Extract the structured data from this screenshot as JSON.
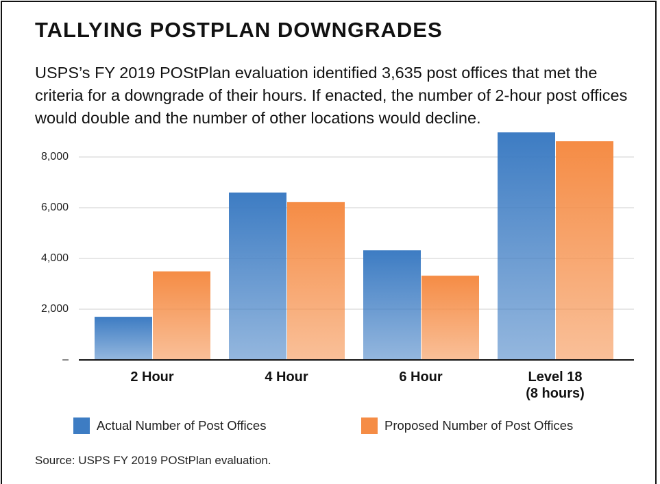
{
  "chart_data": {
    "type": "bar",
    "title": "TALLYING POSTPLAN DOWNGRADES",
    "subtitle": "USPS’s FY 2019 POStPlan evaluation identified 3,635 post offices that met the criteria for a downgrade of their hours. If enacted, the number of 2-hour post offices would double and the number of other locations would decline.",
    "source": "Source: USPS FY 2019 POStPlan evaluation.",
    "categories": [
      "2 Hour",
      "4 Hour",
      "6 Hour",
      "Level 18\n(8 hours)"
    ],
    "series": [
      {
        "name": "Actual Number of Post Offices",
        "color": "#3d7cc3",
        "values": [
          1700,
          6600,
          4320,
          8970
        ]
      },
      {
        "name": "Proposed Number of Post Offices",
        "color": "#f58c45",
        "values": [
          3490,
          6220,
          3320,
          8620
        ]
      }
    ],
    "ylim": [
      0,
      9000
    ],
    "yticks": [
      {
        "value": 0,
        "label": "–"
      },
      {
        "value": 2000,
        "label": "2,000"
      },
      {
        "value": 4000,
        "label": "4,000"
      },
      {
        "value": 6000,
        "label": "6,000"
      },
      {
        "value": 8000,
        "label": "8,000"
      }
    ],
    "grid": true,
    "legend": "bottom"
  }
}
